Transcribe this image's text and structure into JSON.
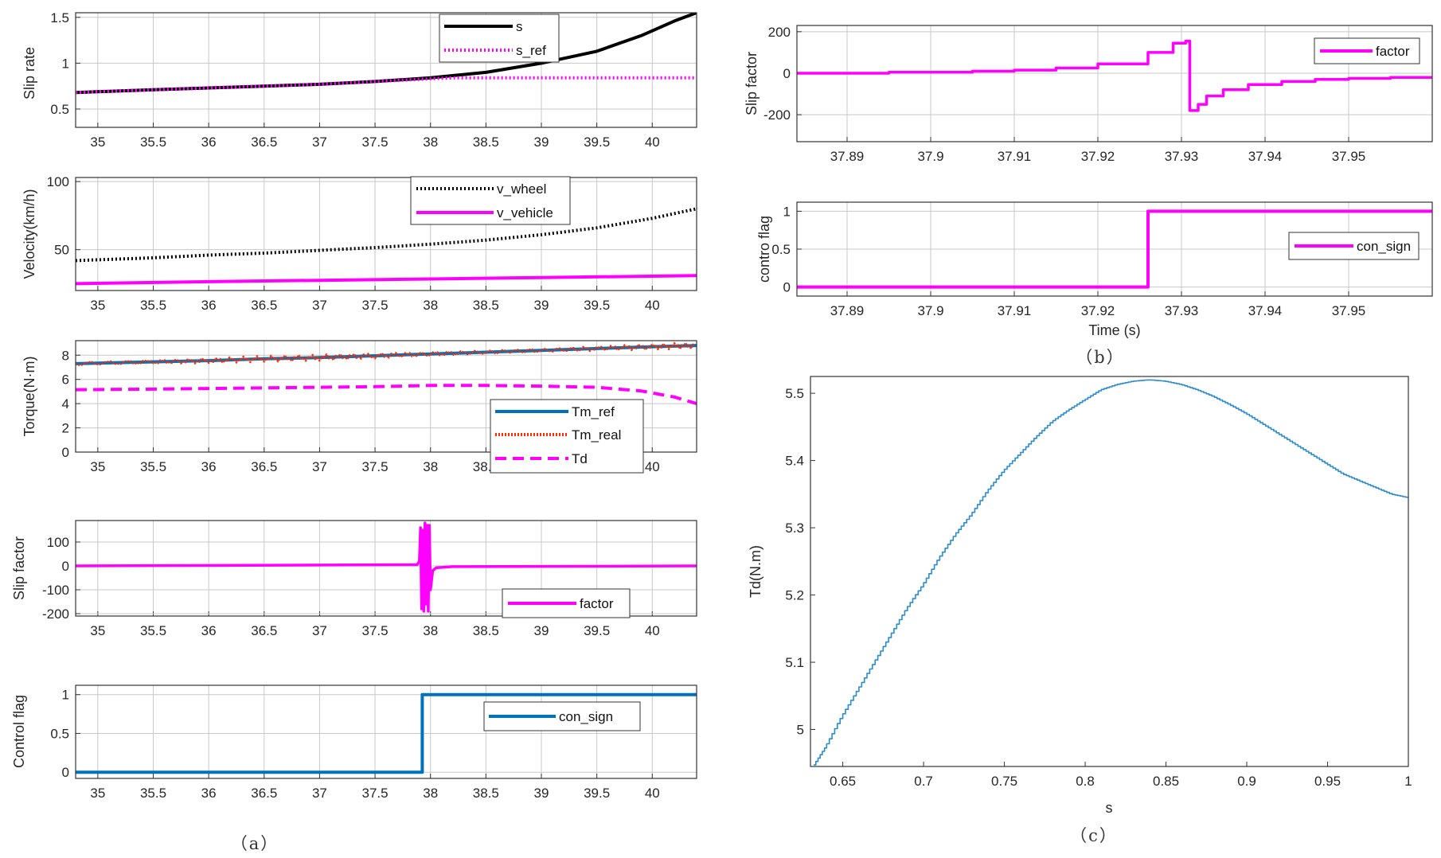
{
  "captions": {
    "a": "（a）",
    "b": "（b）",
    "c": "（c）"
  },
  "chart_data": [
    {
      "id": "a1",
      "type": "line",
      "ylabel": "Slip rate",
      "xlim": [
        34.8,
        40.4
      ],
      "ylim": [
        0.3,
        1.55
      ],
      "xticks": [
        35,
        35.5,
        36,
        36.5,
        37,
        37.5,
        38,
        38.5,
        39,
        39.5,
        40
      ],
      "xtick_labels": [
        "35",
        "35.5",
        "36",
        "36.5",
        "37",
        "37.5",
        "38",
        "38.5",
        "39",
        "39.5",
        "40"
      ],
      "yticks": [
        0.5,
        1,
        1.5
      ],
      "ytick_labels": [
        "0.5",
        "1",
        "1.5"
      ],
      "legend_position": "top-right",
      "series": [
        {
          "name": "s",
          "color": "#000000",
          "style": "solid",
          "x": [
            34.8,
            35.5,
            36,
            36.5,
            37,
            37.5,
            38,
            38.5,
            39,
            39.5,
            39.9,
            40.2,
            40.4
          ],
          "y": [
            0.68,
            0.71,
            0.73,
            0.75,
            0.77,
            0.8,
            0.84,
            0.9,
            1.0,
            1.13,
            1.3,
            1.46,
            1.55
          ]
        },
        {
          "name": "s_ref",
          "color": "#ff00ff",
          "style": "dotted",
          "x": [
            34.8,
            35.5,
            36,
            36.5,
            37,
            37.5,
            38,
            38.2,
            38.5,
            40.4
          ],
          "y": [
            0.68,
            0.71,
            0.73,
            0.75,
            0.77,
            0.8,
            0.83,
            0.84,
            0.84,
            0.84
          ]
        }
      ]
    },
    {
      "id": "a2",
      "type": "line",
      "ylabel": "Velocity(km/h)",
      "xlim": [
        34.8,
        40.4
      ],
      "ylim": [
        20,
        103
      ],
      "xticks": [
        35,
        35.5,
        36,
        36.5,
        37,
        37.5,
        38,
        38.5,
        39,
        39.5,
        40
      ],
      "xtick_labels": [
        "35",
        "35.5",
        "36",
        "36.5",
        "37",
        "37.5",
        "38",
        "38.5",
        "39",
        "39.5",
        "40"
      ],
      "yticks": [
        50,
        100
      ],
      "ytick_labels": [
        "50",
        "100"
      ],
      "legend_position": "top-right",
      "series": [
        {
          "name": "v_wheel",
          "color": "#000000",
          "style": "dotted",
          "x": [
            34.8,
            35.5,
            36,
            36.5,
            37,
            37.5,
            38,
            38.5,
            39,
            39.5,
            40,
            40.4
          ],
          "y": [
            42,
            44,
            46,
            47.5,
            49.5,
            51.5,
            54,
            57,
            61,
            66,
            73,
            80
          ]
        },
        {
          "name": "v_vehicle",
          "color": "#ff00ff",
          "style": "solid",
          "x": [
            34.8,
            36,
            37,
            38,
            39,
            40,
            40.4
          ],
          "y": [
            25,
            26.5,
            27.5,
            28.5,
            29.5,
            30.5,
            31
          ]
        }
      ]
    },
    {
      "id": "a3",
      "type": "line",
      "ylabel": "Torque(N·m)",
      "xlim": [
        34.8,
        40.4
      ],
      "ylim": [
        0,
        9.2
      ],
      "xticks": [
        35,
        35.5,
        36,
        36.5,
        37,
        37.5,
        38,
        38.5,
        39,
        39.5,
        40
      ],
      "xtick_labels": [
        "35",
        "35.5",
        "36",
        "36.5",
        "37",
        "37.5",
        "38",
        "38.5",
        "39",
        "39.5",
        "40"
      ],
      "yticks": [
        0,
        2,
        4,
        6,
        8
      ],
      "ytick_labels": [
        "0",
        "2",
        "4",
        "6",
        "8"
      ],
      "legend_position": "bottom-right",
      "series": [
        {
          "name": "Tm_ref",
          "color": "#0072bd",
          "style": "solid",
          "x": [
            34.8,
            35.5,
            36,
            36.5,
            37,
            37.5,
            38,
            38.5,
            39,
            39.5,
            40,
            40.4
          ],
          "y": [
            7.3,
            7.45,
            7.55,
            7.7,
            7.8,
            7.95,
            8.1,
            8.25,
            8.4,
            8.55,
            8.7,
            8.8
          ]
        },
        {
          "name": "Tm_real",
          "color": "#ff2a00",
          "style": "dotted",
          "noise": 0.25,
          "x": [
            34.8,
            35.5,
            36,
            36.5,
            37,
            37.5,
            38,
            38.5,
            39,
            39.5,
            40,
            40.4
          ],
          "y": [
            7.3,
            7.45,
            7.55,
            7.7,
            7.8,
            7.95,
            8.1,
            8.25,
            8.4,
            8.55,
            8.7,
            8.8
          ]
        },
        {
          "name": "Td",
          "color": "#ff00ff",
          "style": "dashed",
          "x": [
            34.8,
            35.5,
            36,
            36.5,
            37,
            37.5,
            38,
            38.5,
            39,
            39.5,
            39.9,
            40.2,
            40.4
          ],
          "y": [
            5.15,
            5.2,
            5.25,
            5.3,
            5.35,
            5.4,
            5.5,
            5.5,
            5.45,
            5.35,
            5.05,
            4.55,
            4.0
          ]
        }
      ],
      "legend": [
        "Tm_ref",
        "Tm_real",
        "Td"
      ]
    },
    {
      "id": "a4",
      "type": "line",
      "ylabel": "Slip factor",
      "xlim": [
        34.8,
        40.4
      ],
      "ylim": [
        -210,
        190
      ],
      "xticks": [
        35,
        35.5,
        36,
        36.5,
        37,
        37.5,
        38,
        38.5,
        39,
        39.5,
        40
      ],
      "xtick_labels": [
        "35",
        "35.5",
        "36",
        "36.5",
        "37",
        "37.5",
        "38",
        "38.5",
        "39",
        "39.5",
        "40"
      ],
      "yticks": [
        -200,
        -100,
        0,
        100
      ],
      "ytick_labels": [
        "-200",
        "-100",
        "0",
        "100"
      ],
      "legend_position": "bottom-right",
      "series": [
        {
          "name": "factor",
          "color": "#ff00ff",
          "style": "solid",
          "x": [
            34.8,
            37.88,
            37.9,
            37.91,
            37.92,
            37.93,
            37.94,
            37.95,
            37.96,
            37.97,
            37.98,
            37.99,
            38.0,
            38.02,
            38.05,
            38.2,
            40.4
          ],
          "y": [
            0,
            5,
            20,
            160,
            -180,
            150,
            -190,
            180,
            -160,
            170,
            -190,
            170,
            -100,
            -20,
            -8,
            -3,
            0
          ]
        }
      ]
    },
    {
      "id": "a5",
      "type": "line",
      "ylabel": "Control flag",
      "xlim": [
        34.8,
        40.4
      ],
      "ylim": [
        -0.08,
        1.12
      ],
      "xticks": [
        35,
        35.5,
        36,
        36.5,
        37,
        37.5,
        38,
        38.5,
        39,
        39.5,
        40
      ],
      "xtick_labels": [
        "35",
        "35.5",
        "36",
        "36.5",
        "37",
        "37.5",
        "38",
        "38.5",
        "39",
        "39.5",
        "40"
      ],
      "yticks": [
        0,
        0.5,
        1
      ],
      "ytick_labels": [
        "0",
        "0.5",
        "1"
      ],
      "legend_position": "top-right",
      "series": [
        {
          "name": "con_sign",
          "color": "#0072bd",
          "style": "solid",
          "x": [
            34.8,
            37.926,
            37.926,
            40.4
          ],
          "y": [
            0,
            0,
            1,
            1
          ]
        }
      ]
    },
    {
      "id": "b1",
      "type": "line",
      "ylabel": "Slip factor",
      "xlim": [
        37.884,
        37.96
      ],
      "ylim": [
        -330,
        230
      ],
      "xticks": [
        37.89,
        37.9,
        37.91,
        37.92,
        37.93,
        37.94,
        37.95
      ],
      "xtick_labels": [
        "37.89",
        "37.9",
        "37.91",
        "37.92",
        "37.93",
        "37.94",
        "37.95"
      ],
      "yticks": [
        -200,
        0,
        200
      ],
      "ytick_labels": [
        "-200",
        "0",
        "200"
      ],
      "legend_position": "top-right",
      "series": [
        {
          "name": "factor",
          "color": "#ff00ff",
          "style": "solid",
          "x": [
            37.884,
            37.895,
            37.895,
            37.905,
            37.905,
            37.91,
            37.91,
            37.915,
            37.915,
            37.92,
            37.92,
            37.926,
            37.926,
            37.929,
            37.929,
            37.9305,
            37.9305,
            37.931,
            37.931,
            37.932,
            37.932,
            37.933,
            37.933,
            37.935,
            37.935,
            37.938,
            37.938,
            37.942,
            37.942,
            37.946,
            37.946,
            37.95,
            37.95,
            37.955,
            37.955,
            37.96
          ],
          "y": [
            0,
            0,
            5,
            5,
            10,
            10,
            15,
            15,
            25,
            25,
            45,
            45,
            100,
            100,
            145,
            145,
            155,
            155,
            -180,
            -180,
            -150,
            -150,
            -110,
            -110,
            -80,
            -80,
            -55,
            -55,
            -40,
            -40,
            -30,
            -30,
            -25,
            -25,
            -20,
            -20
          ]
        }
      ]
    },
    {
      "id": "b2",
      "type": "line",
      "ylabel": "contro flag",
      "xlabel": "Time (s)",
      "xlim": [
        37.884,
        37.96
      ],
      "ylim": [
        -0.12,
        1.12
      ],
      "xticks": [
        37.89,
        37.9,
        37.91,
        37.92,
        37.93,
        37.94,
        37.95
      ],
      "xtick_labels": [
        "37.89",
        "37.9",
        "37.91",
        "37.92",
        "37.93",
        "37.94",
        "37.95"
      ],
      "yticks": [
        0,
        0.5,
        1
      ],
      "ytick_labels": [
        "0",
        "0.5",
        "1"
      ],
      "legend_position": "right",
      "series": [
        {
          "name": "con_sign",
          "color": "#ff00ff",
          "style": "solid",
          "x": [
            37.884,
            37.926,
            37.926,
            37.96
          ],
          "y": [
            0,
            0,
            1,
            1
          ]
        }
      ]
    },
    {
      "id": "c",
      "type": "line",
      "ylabel": "Td(N.m)",
      "xlabel": "s",
      "xlim": [
        0.63,
        1.0
      ],
      "ylim": [
        4.945,
        5.525
      ],
      "xticks": [
        0.65,
        0.7,
        0.75,
        0.8,
        0.85,
        0.9,
        0.95,
        1
      ],
      "xtick_labels": [
        "0.65",
        "0.7",
        "0.75",
        "0.8",
        "0.85",
        "0.9",
        "0.95",
        "1"
      ],
      "yticks": [
        5,
        5.1,
        5.2,
        5.3,
        5.4,
        5.5
      ],
      "ytick_labels": [
        "5",
        "5.1",
        "5.2",
        "5.3",
        "5.4",
        "5.5"
      ],
      "series": [
        {
          "name": "Td",
          "color": "#2a8ccf",
          "style": "staircase",
          "x": [
            0.632,
            0.64,
            0.65,
            0.66,
            0.67,
            0.68,
            0.69,
            0.7,
            0.71,
            0.72,
            0.73,
            0.74,
            0.75,
            0.76,
            0.77,
            0.78,
            0.79,
            0.8,
            0.81,
            0.82,
            0.83,
            0.84,
            0.85,
            0.86,
            0.87,
            0.88,
            0.89,
            0.9,
            0.91,
            0.92,
            0.93,
            0.94,
            0.95,
            0.96,
            0.97,
            0.98,
            0.99,
            1.0
          ],
          "y": [
            4.945,
            4.975,
            5.02,
            5.06,
            5.1,
            5.14,
            5.18,
            5.215,
            5.255,
            5.29,
            5.32,
            5.355,
            5.385,
            5.41,
            5.435,
            5.458,
            5.475,
            5.49,
            5.505,
            5.513,
            5.518,
            5.52,
            5.518,
            5.513,
            5.505,
            5.495,
            5.483,
            5.47,
            5.455,
            5.44,
            5.425,
            5.41,
            5.395,
            5.38,
            5.37,
            5.36,
            5.35,
            5.345
          ]
        }
      ]
    }
  ]
}
